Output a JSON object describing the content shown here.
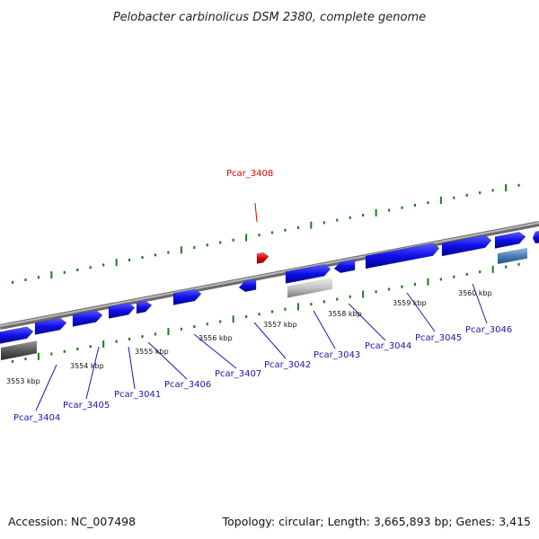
{
  "title": "Pelobacter carbinolicus DSM 2380, complete genome",
  "footer": {
    "accession": "Accession: NC_007498",
    "topology": "Topology: circular; Length: 3,665,893 bp; Genes: 3,415"
  },
  "colors": {
    "background": "#ffffff",
    "backbone": "#8c8c8c",
    "tick_upper": "#1e7a1e",
    "tick_lower": "#1e7a1e",
    "gene_blue": "#1010e8",
    "gene_highlight": "#e00000",
    "gene_gray_light": "#bdbdbd",
    "gene_gray_dark": "#5a5a5a",
    "gene_steel": "#4a7fb5",
    "label_blue": "#1a1aa8",
    "label_red": "#e00000"
  },
  "scale_labels": [
    {
      "text": "3553 kbp",
      "id": "kbp-3553"
    },
    {
      "text": "3554 kbp",
      "id": "kbp-3554"
    },
    {
      "text": "3555 kbp",
      "id": "kbp-3555"
    },
    {
      "text": "3556 kbp",
      "id": "kbp-3556"
    },
    {
      "text": "3557 kbp",
      "id": "kbp-3557"
    },
    {
      "text": "3558 kbp",
      "id": "kbp-3558"
    },
    {
      "text": "3559 kbp",
      "id": "kbp-3559"
    },
    {
      "text": "3560 kbp",
      "id": "kbp-3560"
    }
  ],
  "gene_labels": [
    {
      "text": "Pcar_3408",
      "highlight": true
    },
    {
      "text": "Pcar_3404",
      "highlight": false
    },
    {
      "text": "Pcar_3405",
      "highlight": false
    },
    {
      "text": "Pcar_3041",
      "highlight": false
    },
    {
      "text": "Pcar_3406",
      "highlight": false
    },
    {
      "text": "Pcar_3407",
      "highlight": false
    },
    {
      "text": "Pcar_3042",
      "highlight": false
    },
    {
      "text": "Pcar_3043",
      "highlight": false
    },
    {
      "text": "Pcar_3044",
      "highlight": false
    },
    {
      "text": "Pcar_3045",
      "highlight": false
    },
    {
      "text": "Pcar_3046",
      "highlight": false
    }
  ]
}
